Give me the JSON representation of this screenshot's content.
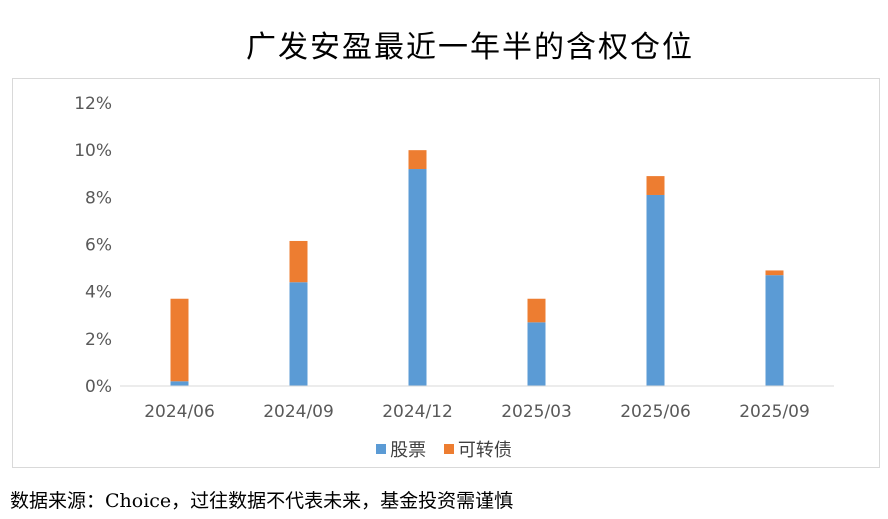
{
  "title": "广发安盈最近一年半的含权仓位",
  "footnote": "数据来源：Choice，过往数据不代表未来，基金投资需谨慎",
  "colors": {
    "series_0": "#5b9bd5",
    "series_1": "#ed7d31",
    "axis": "#d9d9d9"
  },
  "chart_data": {
    "type": "bar",
    "stacked": true,
    "categories": [
      "2024/06",
      "2024/09",
      "2024/12",
      "2025/03",
      "2025/06",
      "2025/09"
    ],
    "series": [
      {
        "name": "股票",
        "values": [
          0.2,
          4.4,
          9.2,
          2.7,
          8.1,
          4.7
        ]
      },
      {
        "name": "可转债",
        "values": [
          3.5,
          1.75,
          0.8,
          1.0,
          0.8,
          0.2
        ]
      }
    ],
    "ylim": [
      0,
      12
    ],
    "yticks": [
      "0%",
      "2%",
      "4%",
      "6%",
      "8%",
      "10%",
      "12%"
    ],
    "ytick_values": [
      0,
      2,
      4,
      6,
      8,
      10,
      12
    ],
    "grid": false,
    "legend_position": "bottom"
  }
}
